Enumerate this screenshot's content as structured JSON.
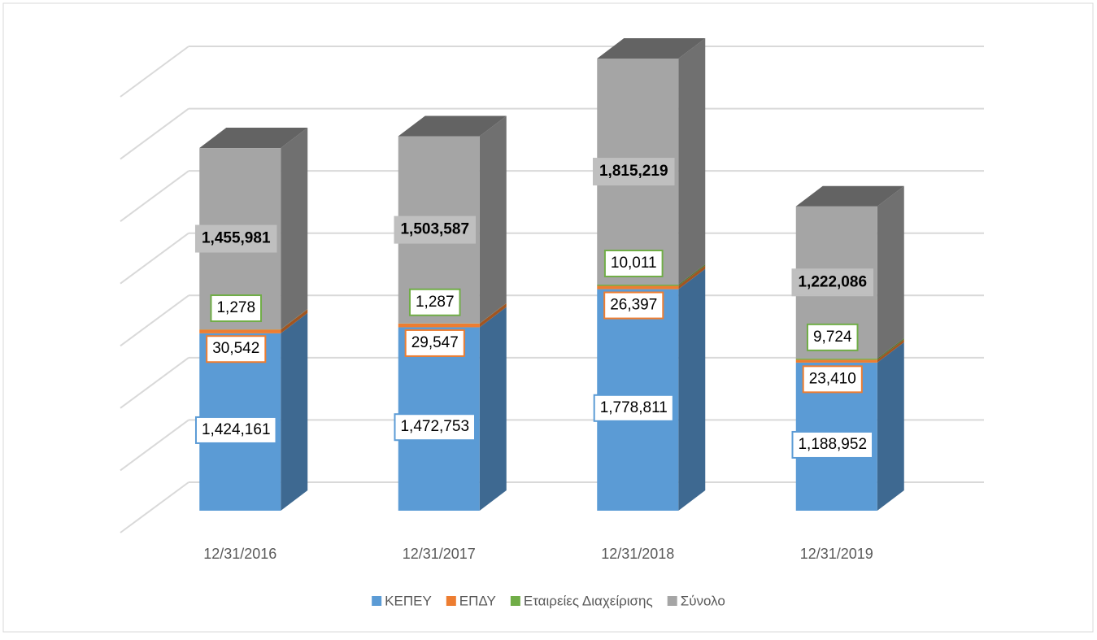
{
  "chart_data": {
    "type": "bar3d-stacked",
    "categories": [
      "12/31/2016",
      "12/31/2017",
      "12/31/2018",
      "12/31/2019"
    ],
    "series": [
      {
        "name": "ΚΕΠΕΥ",
        "color": "#5b9bd5",
        "values": [
          1424161,
          1472753,
          1778811,
          1188952
        ]
      },
      {
        "name": "ΕΠΔΥ",
        "color": "#ed7d31",
        "values": [
          30542,
          29547,
          26397,
          23410
        ]
      },
      {
        "name": "Εταιρείες Διαχείρισης",
        "color": "#70ad47",
        "values": [
          1278,
          1287,
          10011,
          9724
        ]
      },
      {
        "name": "Σύνολο",
        "color": "#a5a5a5",
        "values": [
          1455981,
          1503587,
          1815219,
          1222086
        ]
      }
    ],
    "value_labels": [
      [
        "1,424,161",
        "1,472,753",
        "1,778,811",
        "1,188,952"
      ],
      [
        "30,542",
        "29,547",
        "26,397",
        "23,410"
      ],
      [
        "1,278",
        "1,287",
        "10,011",
        "9,724"
      ],
      [
        "1,455,981",
        "1,503,587",
        "1,815,219",
        "1,222,086"
      ]
    ],
    "ylim": [
      0,
      3500000
    ],
    "yticks": [
      0,
      500000,
      1000000,
      1500000,
      2000000,
      2500000,
      3000000,
      3500000
    ],
    "grid": true
  }
}
